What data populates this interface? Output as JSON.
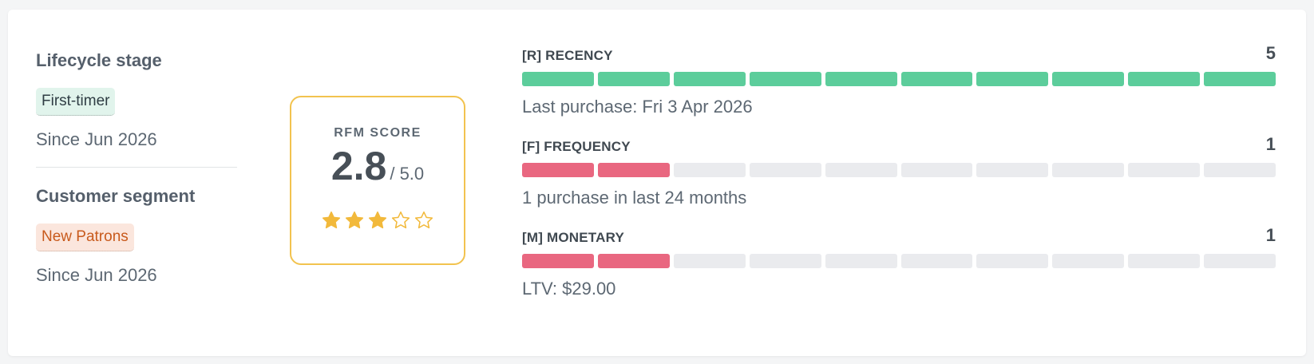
{
  "lifecycle": {
    "title": "Lifecycle stage",
    "badge": "First-timer",
    "since": "Since Jun 2026"
  },
  "segment": {
    "title": "Customer segment",
    "badge": "New Patrons",
    "since": "Since Jun 2026"
  },
  "rfm": {
    "label": "RFM SCORE",
    "value": "2.8",
    "max": "/ 5.0",
    "stars_filled": 3,
    "stars_total": 5,
    "star_color": "#f2b93b"
  },
  "metrics": [
    {
      "label": "[R] RECENCY",
      "score": "5",
      "filled": 10,
      "total": 10,
      "color": "green",
      "note": "Last purchase: Fri 3 Apr 2026"
    },
    {
      "label": "[F] FREQUENCY",
      "score": "1",
      "filled": 2,
      "total": 10,
      "color": "red",
      "note": "1 purchase in last 24 months"
    },
    {
      "label": "[M] MONETARY",
      "score": "1",
      "filled": 2,
      "total": 10,
      "color": "red",
      "note": "LTV: $29.00"
    }
  ],
  "colors": {
    "green_bar": "#5ccd9b",
    "red_bar": "#e96780",
    "empty_bar": "#eaebee",
    "score_border": "#f2c34f"
  }
}
